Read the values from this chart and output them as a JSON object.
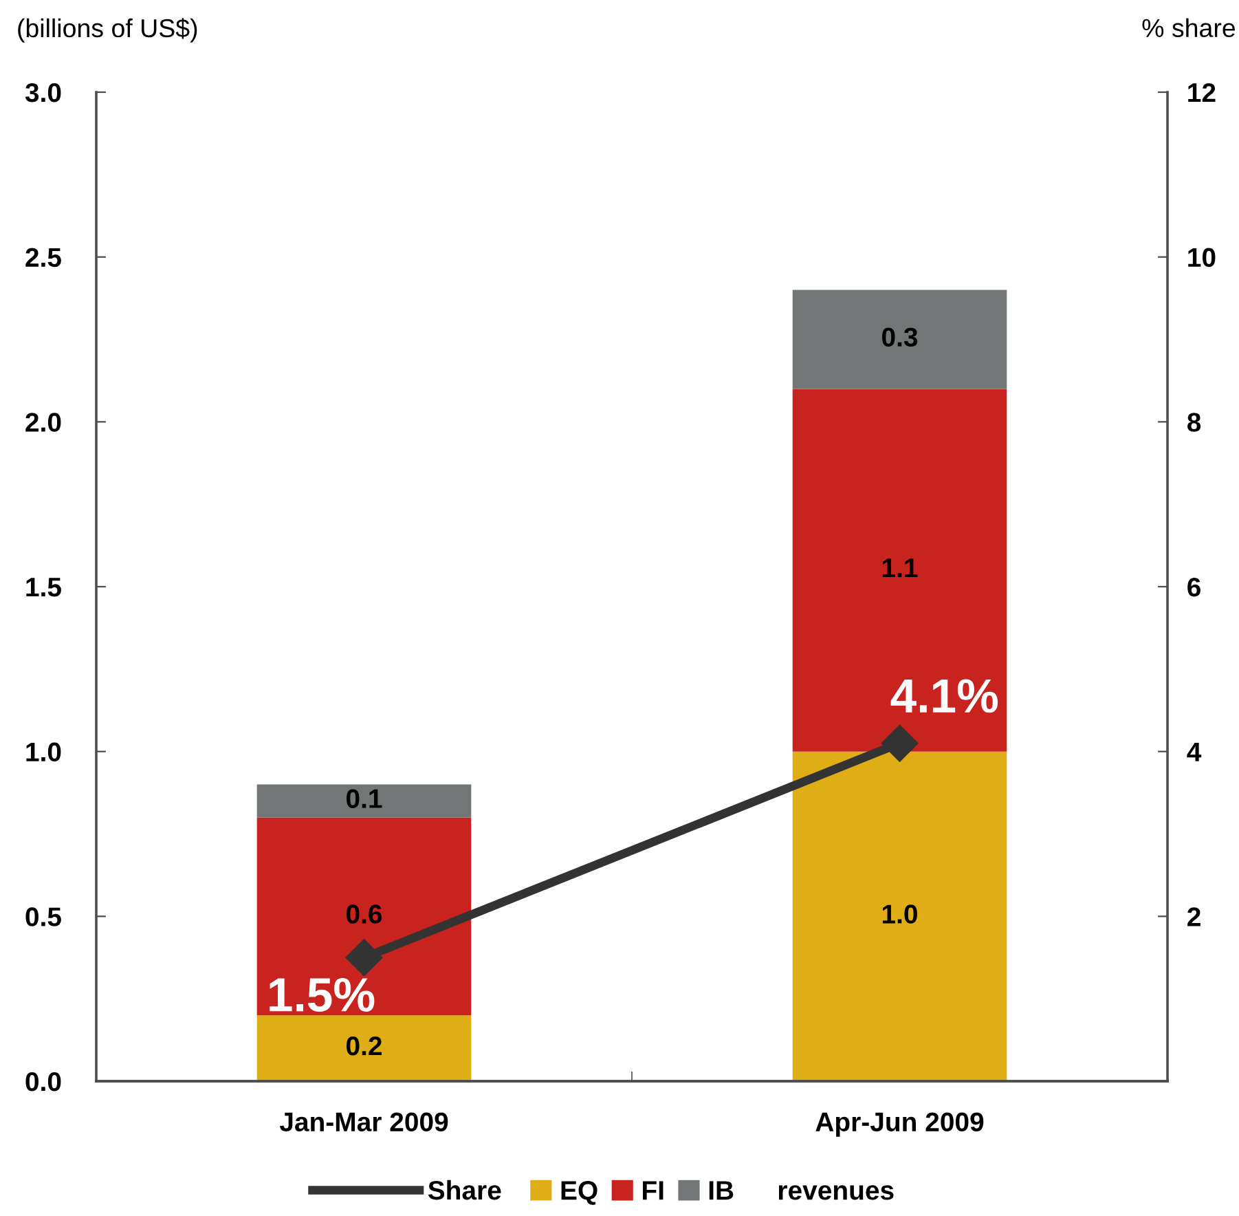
{
  "chart_data": {
    "type": "bar",
    "stacked": true,
    "categories": [
      "Jan-Mar 2009",
      "Apr-Jun 2009"
    ],
    "ylabel": "(billions of US$)",
    "y2label": "% share",
    "ylim": [
      0,
      3
    ],
    "yticks": [
      {
        "value": 0,
        "label": "0.0"
      },
      0.5,
      {
        "value": 1,
        "label": "1.0"
      },
      1.5,
      {
        "value": 2,
        "label": "2.0"
      },
      2.5,
      {
        "value": 3,
        "label": "3.0"
      }
    ],
    "y2lim": [
      0,
      12
    ],
    "y2ticks": [
      2,
      4,
      6,
      8,
      10,
      12
    ],
    "series": [
      {
        "name": "Share",
        "type": "line",
        "axis": "y2",
        "color": "#333333",
        "values": [
          1.5,
          4.1
        ],
        "value_labels": [
          "1.5%",
          "4.1%"
        ]
      },
      {
        "name": "EQ",
        "color": "#dfad16",
        "values": [
          0.2,
          1.0
        ],
        "value_labels": [
          "0.2",
          "1.0"
        ]
      },
      {
        "name": "FI",
        "color": "#c8231f",
        "values": [
          0.6,
          1.1
        ],
        "value_labels": [
          "0.6",
          "1.1"
        ]
      },
      {
        "name": "IB",
        "color": "#737677",
        "values": [
          0.1,
          0.3
        ],
        "value_labels": [
          "0.1",
          "0.3"
        ]
      }
    ],
    "marker": "diamond",
    "line_style": "solid",
    "legend": "bottom",
    "annotations": [
      "revenues"
    ]
  }
}
